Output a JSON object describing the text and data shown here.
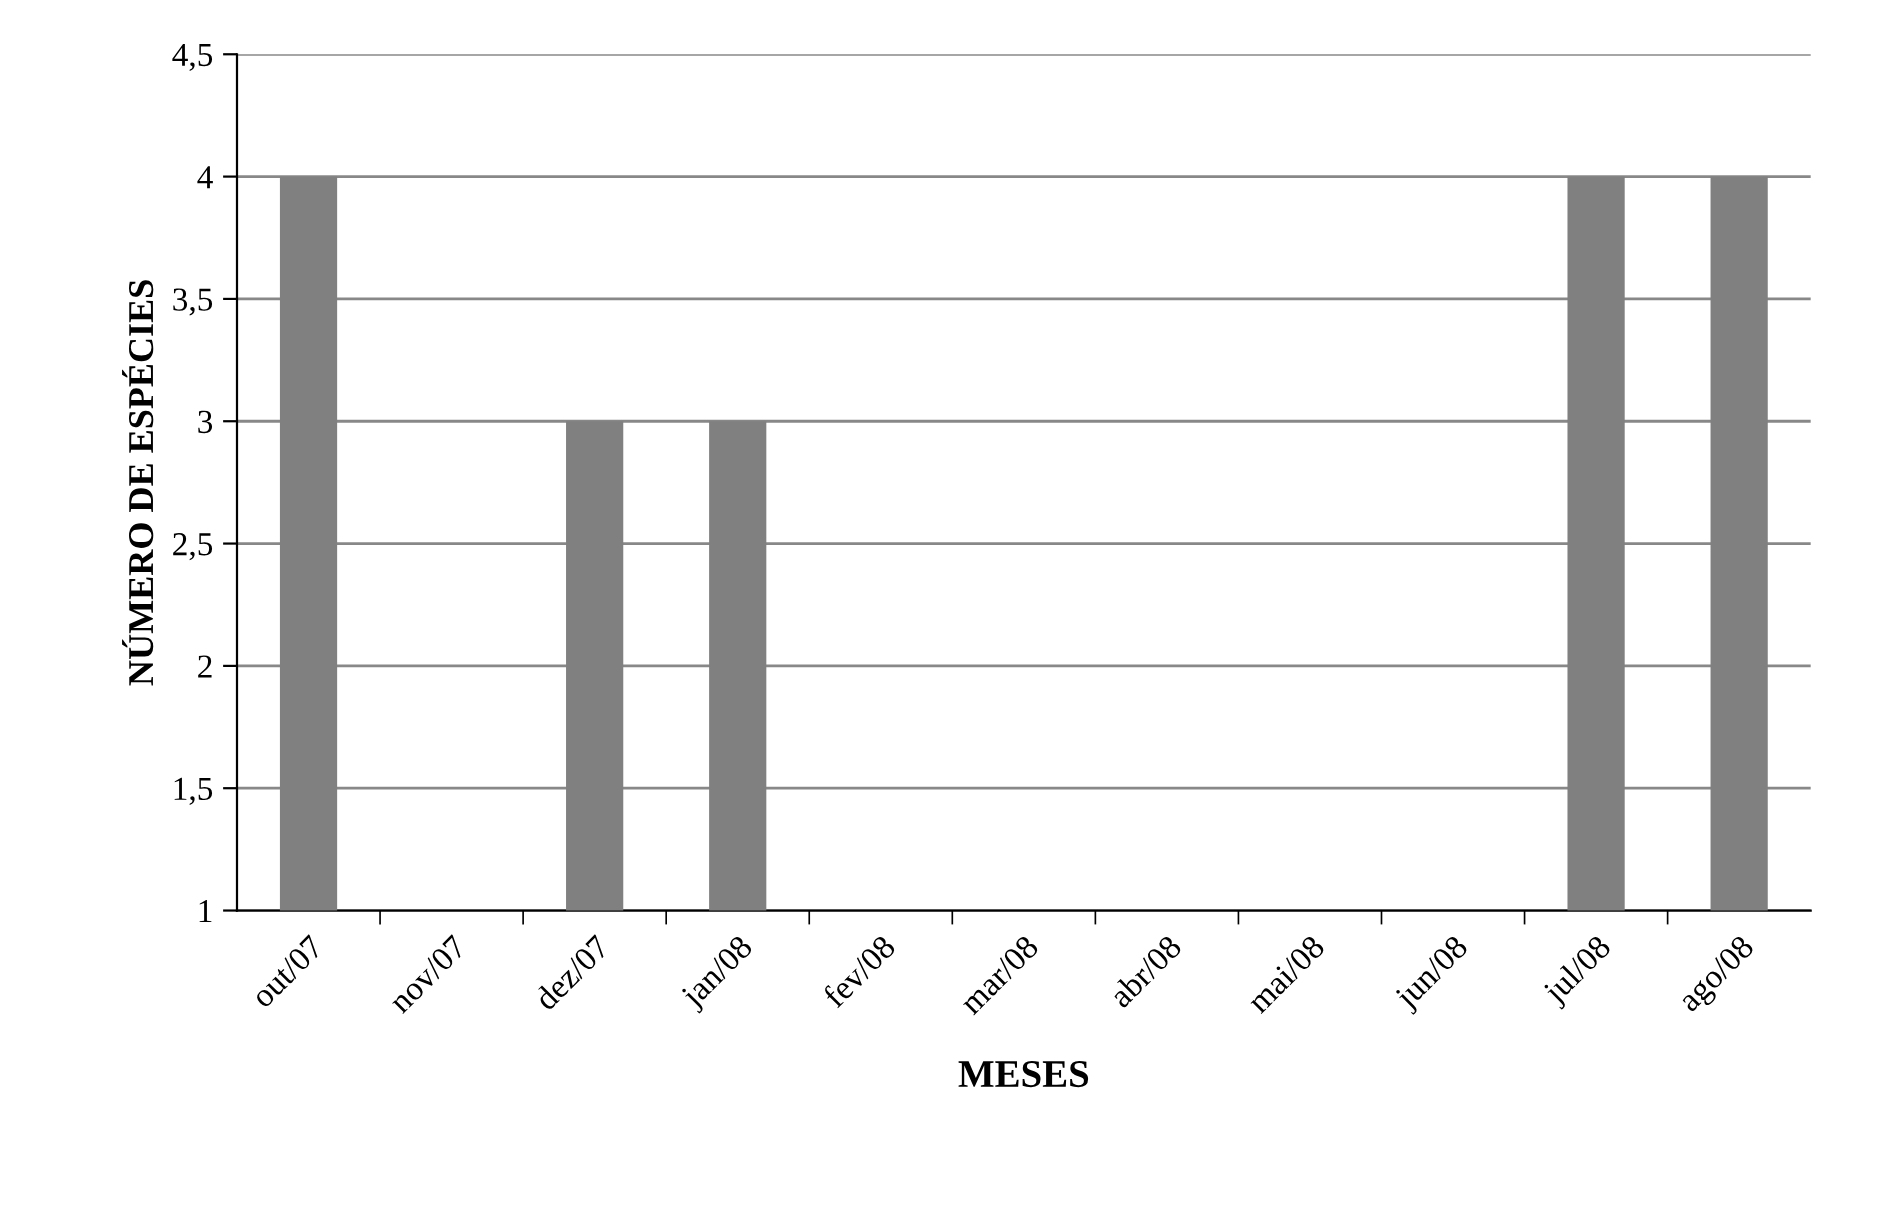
{
  "chart_data": {
    "type": "bar",
    "xlabel": "MESES",
    "ylabel": "NÚMERO DE ESPÉCIES",
    "categories": [
      "out/07",
      "nov/07",
      "dez/07",
      "jan/08",
      "fev/08",
      "mar/08",
      "abr/08",
      "mai/08",
      "jun/08",
      "jul/08",
      "ago/08"
    ],
    "values": [
      4,
      null,
      3,
      3,
      null,
      null,
      null,
      null,
      null,
      4,
      4
    ],
    "color": "#808080",
    "ylim": [
      1,
      4.5
    ],
    "yticks": [
      1,
      {
        "value": 1.5,
        "label": "1,5"
      },
      2,
      {
        "value": 2.5,
        "label": "2,5"
      },
      3,
      {
        "value": 3.5,
        "label": "3,5"
      },
      4,
      {
        "value": 4.5,
        "label": "4,5"
      }
    ],
    "grid": "y",
    "legend": false
  }
}
